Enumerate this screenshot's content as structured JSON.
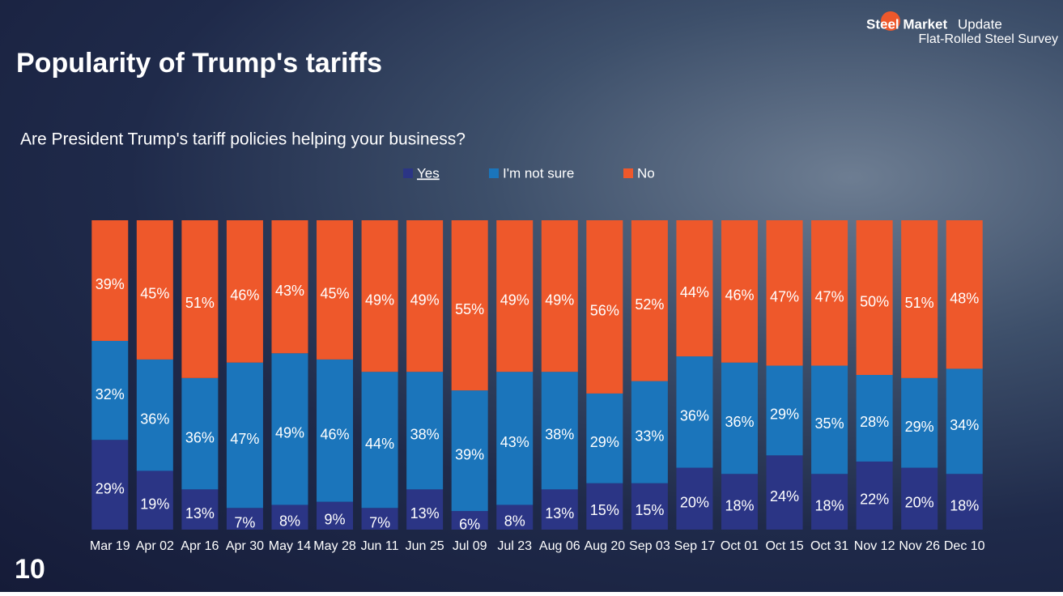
{
  "logo": {
    "brand": "Steel Market",
    "suffix": "Update",
    "subtitle": "Flat-Rolled Steel Survey"
  },
  "page_number": "10",
  "chart_data": {
    "type": "bar",
    "stacked": true,
    "title": "Popularity of Trump's tariffs",
    "subtitle": "Are President Trump's tariff policies helping your business?",
    "categories": [
      "Mar 19",
      "Apr 02",
      "Apr 16",
      "Apr 30",
      "May 14",
      "May 28",
      "Jun 11",
      "Jun 25",
      "Jul 09",
      "Jul 23",
      "Aug 06",
      "Aug 20",
      "Sep 03",
      "Sep 17",
      "Oct 01",
      "Oct 15",
      "Oct 31",
      "Nov 12",
      "Nov 26",
      "Dec 10"
    ],
    "ylim": [
      0,
      100
    ],
    "series": [
      {
        "name": "Yes",
        "color": "#2b3585",
        "values": [
          29,
          19,
          13,
          7,
          8,
          9,
          7,
          13,
          6,
          8,
          13,
          15,
          15,
          20,
          18,
          24,
          18,
          22,
          20,
          18
        ],
        "value_labels": [
          "29%",
          "19%",
          "13%",
          "7%",
          "8%",
          "9%",
          "7%",
          "13%",
          "6%",
          "8%",
          "13%",
          "15%",
          "15%",
          "20%",
          "18%",
          "24%",
          "18%",
          "22%",
          "20%",
          "18%"
        ]
      },
      {
        "name": "I'm not sure",
        "color": "#1b75bb",
        "values": [
          32,
          36,
          36,
          47,
          49,
          46,
          44,
          38,
          39,
          43,
          38,
          29,
          33,
          36,
          36,
          29,
          35,
          28,
          29,
          34
        ],
        "value_labels": [
          "32%",
          "36%",
          "36%",
          "47%",
          "49%",
          "46%",
          "44%",
          "38%",
          "39%",
          "43%",
          "38%",
          "29%",
          "33%",
          "36%",
          "36%",
          "29%",
          "35%",
          "28%",
          "29%",
          "34%"
        ]
      },
      {
        "name": "No",
        "color": "#ee582b",
        "values": [
          39,
          45,
          51,
          46,
          43,
          45,
          49,
          49,
          55,
          49,
          49,
          56,
          52,
          44,
          46,
          47,
          47,
          50,
          51,
          48
        ],
        "value_labels": [
          "39%",
          "45%",
          "51%",
          "46%",
          "43%",
          "45%",
          "49%",
          "49%",
          "55%",
          "49%",
          "49%",
          "56%",
          "52%",
          "44%",
          "46%",
          "47%",
          "47%",
          "50%",
          "51%",
          "48%"
        ]
      }
    ]
  }
}
